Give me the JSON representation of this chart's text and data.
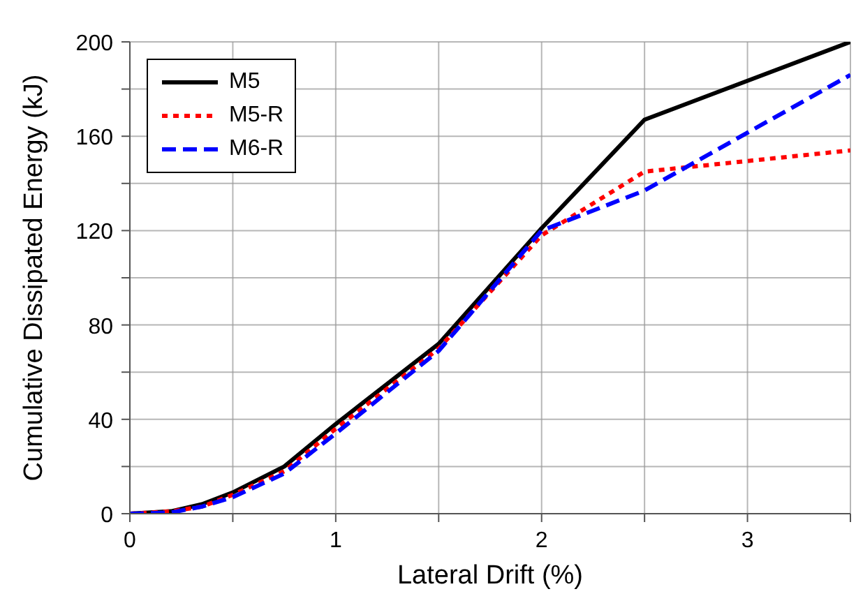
{
  "chart_data": {
    "type": "line",
    "xlabel": "Lateral Drift (%)",
    "ylabel": "Cumulative Dissipated Energy (kJ)",
    "x": [
      0,
      0.2,
      0.35,
      0.5,
      0.75,
      1,
      1.5,
      2,
      2.5,
      3.5
    ],
    "series": [
      {
        "name": "M5",
        "color": "#000000",
        "line_style": "solid",
        "values": [
          0,
          1,
          4,
          9,
          20,
          38,
          72,
          121,
          167,
          200
        ]
      },
      {
        "name": "M5-R",
        "color": "#ff0000",
        "line_style": "dotted",
        "values": [
          0,
          1,
          3,
          8,
          18,
          36,
          70,
          118,
          145,
          154
        ]
      },
      {
        "name": "M6-R",
        "color": "#0000ff",
        "line_style": "dashed",
        "values": [
          0,
          0.5,
          3,
          7,
          17,
          34,
          69,
          120,
          137,
          186
        ]
      }
    ],
    "xlim": [
      0,
      3.5
    ],
    "xticks": [
      0,
      {
        "value": 0.5,
        "label": null
      },
      1,
      {
        "value": 1.5,
        "label": null
      },
      2,
      {
        "value": 2.5,
        "label": null
      },
      3,
      {
        "value": 3.5,
        "label": null
      }
    ],
    "ylim": [
      0,
      200
    ],
    "yticks": [
      0,
      {
        "value": 20,
        "label": null
      },
      40,
      {
        "value": 60,
        "label": null
      },
      80,
      {
        "value": 100,
        "label": null
      },
      120,
      {
        "value": 140,
        "label": null
      },
      160,
      {
        "value": 180,
        "label": null
      },
      200
    ],
    "grid": true,
    "legend": "top left",
    "marker": "none"
  }
}
